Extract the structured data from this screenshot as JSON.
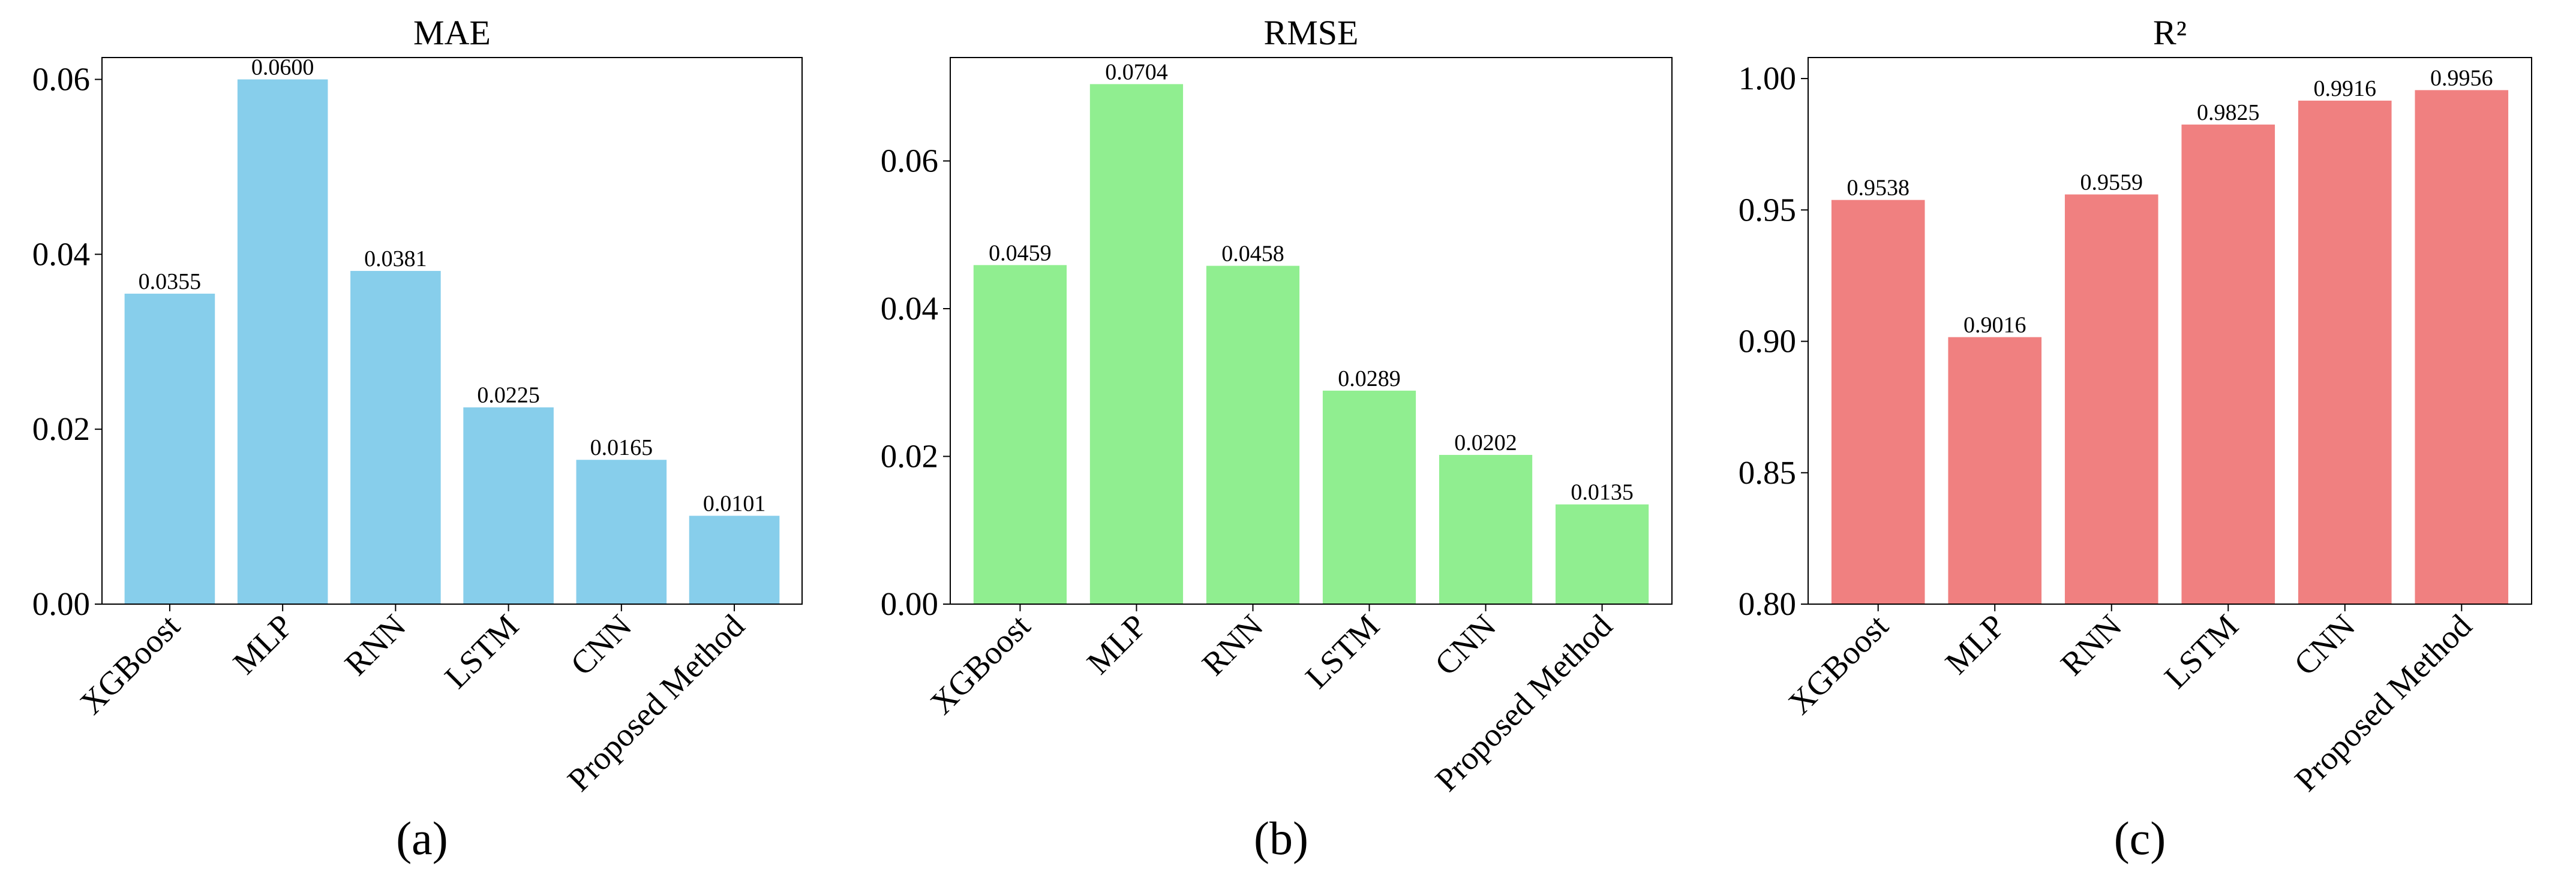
{
  "chart_data": [
    {
      "type": "bar",
      "title": "MAE",
      "caption": "(a)",
      "categories": [
        "XGBoost",
        "MLP",
        "RNN",
        "LSTM",
        "CNN",
        "Proposed Method"
      ],
      "values": [
        0.0355,
        0.06,
        0.0381,
        0.0225,
        0.0165,
        0.0101
      ],
      "value_labels": [
        "0.0355",
        "0.0600",
        "0.0381",
        "0.0225",
        "0.0165",
        "0.0101"
      ],
      "color": "#87ceeb",
      "ylim": [
        0,
        0.0625
      ],
      "yticks": [
        {
          "value": 0,
          "label": "0.00"
        },
        {
          "value": 0.02,
          "label": "0.02"
        },
        {
          "value": 0.04,
          "label": "0.04"
        },
        {
          "value": 0.06,
          "label": "0.06"
        }
      ]
    },
    {
      "type": "bar",
      "title": "RMSE",
      "caption": "(b)",
      "categories": [
        "XGBoost",
        "MLP",
        "RNN",
        "LSTM",
        "CNN",
        "Proposed Method"
      ],
      "values": [
        0.0459,
        0.0704,
        0.0458,
        0.0289,
        0.0202,
        0.0135
      ],
      "value_labels": [
        "0.0459",
        "0.0704",
        "0.0458",
        "0.0289",
        "0.0202",
        "0.0135"
      ],
      "color": "#90ee90",
      "ylim": [
        0,
        0.074
      ],
      "yticks": [
        {
          "value": 0,
          "label": "0.00"
        },
        {
          "value": 0.02,
          "label": "0.02"
        },
        {
          "value": 0.04,
          "label": "0.04"
        },
        {
          "value": 0.06,
          "label": "0.06"
        }
      ]
    },
    {
      "type": "bar",
      "title": "R²",
      "caption": "(c)",
      "categories": [
        "XGBoost",
        "MLP",
        "RNN",
        "LSTM",
        "CNN",
        "Proposed Method"
      ],
      "values": [
        0.9538,
        0.9016,
        0.9559,
        0.9825,
        0.9916,
        0.9956
      ],
      "value_labels": [
        "0.9538",
        "0.9016",
        "0.9559",
        "0.9825",
        "0.9916",
        "0.9956"
      ],
      "color": "#f08080",
      "ylim": [
        0.8,
        1.008
      ],
      "yticks": [
        {
          "value": 0.8,
          "label": "0.80"
        },
        0.85,
        {
          "value": 0.9,
          "label": "0.90"
        },
        0.95,
        {
          "value": 1,
          "label": "1.00"
        }
      ]
    }
  ]
}
